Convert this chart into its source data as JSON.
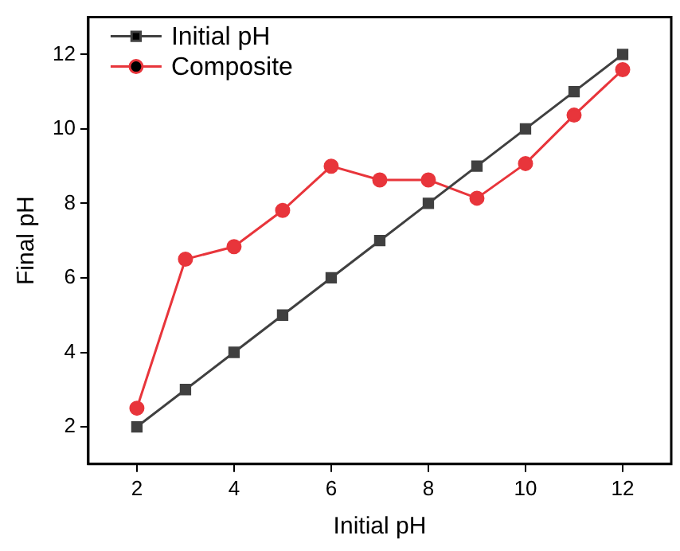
{
  "chart_data": {
    "type": "line",
    "xlabel": "Initial pH",
    "ylabel": "Final pH",
    "x": [
      2,
      3,
      4,
      5,
      6,
      7,
      8,
      9,
      10,
      11,
      12
    ],
    "series": [
      {
        "name": "Initial pH",
        "color": "#404040",
        "marker": "square",
        "values": [
          2,
          3,
          4,
          5,
          6,
          7,
          8,
          9,
          10,
          11,
          12
        ]
      },
      {
        "name": "Composite",
        "color": "#e8353b",
        "marker": "circle",
        "values": [
          2.5,
          6.5,
          6.84,
          7.81,
          9.0,
          8.63,
          8.63,
          8.14,
          9.07,
          10.37,
          11.59
        ]
      }
    ],
    "xlim": [
      1,
      13
    ],
    "xticks": [
      2,
      4,
      6,
      8,
      10,
      12
    ],
    "ylim": [
      1,
      13
    ],
    "yticks": [
      2,
      4,
      6,
      8,
      10,
      12
    ],
    "grid": false,
    "legend": "top left",
    "line_style": "solid"
  }
}
